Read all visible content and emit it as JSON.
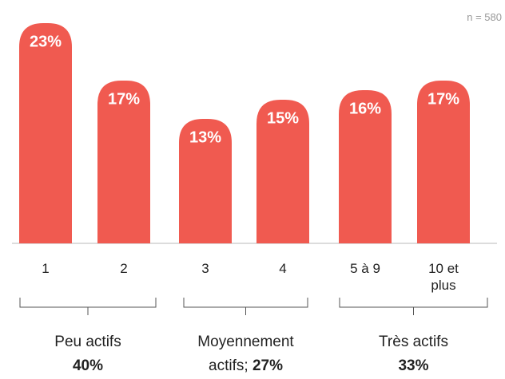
{
  "chart_data": {
    "type": "bar",
    "annotation": "n = 580",
    "categories": [
      "1",
      "2",
      "3",
      "4",
      "5 à 9",
      "10 et plus"
    ],
    "values": [
      23,
      17,
      13,
      15,
      16,
      17
    ],
    "value_labels": [
      "23%",
      "17%",
      "13%",
      "15%",
      "16%",
      "17%"
    ],
    "color": "#f05a50",
    "ylim": [
      0,
      25
    ],
    "groups": [
      {
        "name": "Peu actifs",
        "value": 40,
        "value_label": "40%"
      },
      {
        "name": "Moyennement actifs;",
        "value": 27,
        "value_label": "27%"
      },
      {
        "name": "Très actifs",
        "value": 33,
        "value_label": "33%"
      }
    ]
  }
}
